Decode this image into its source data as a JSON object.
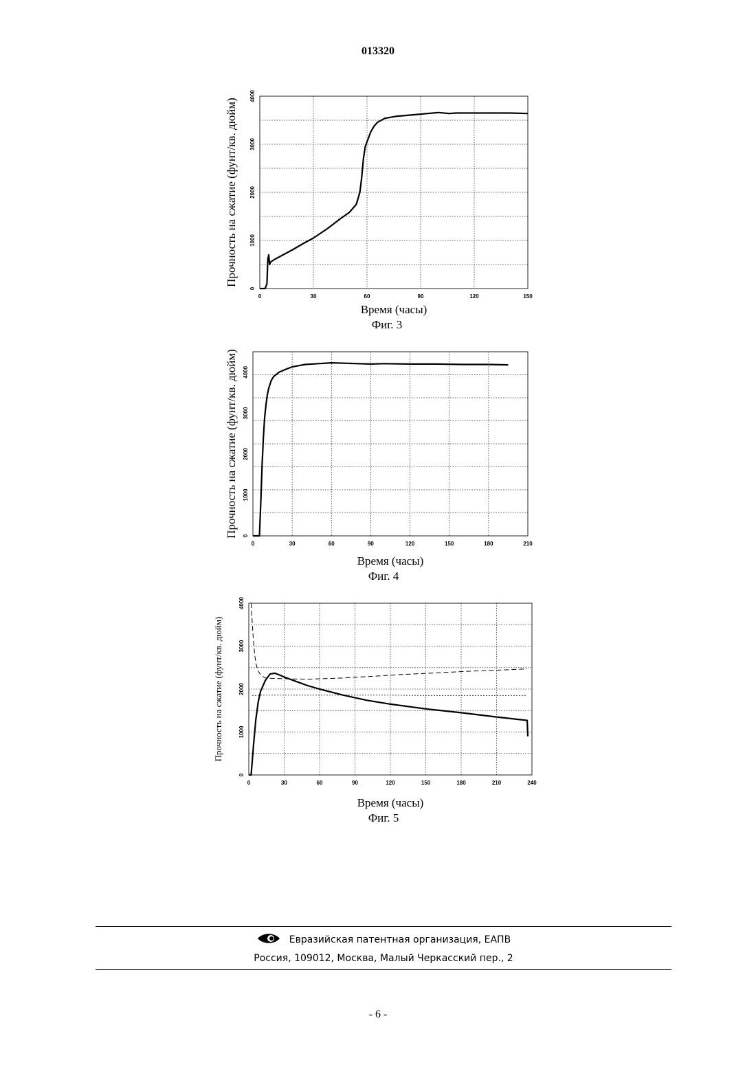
{
  "header": {
    "doc_number": "013320"
  },
  "chart_data": [
    {
      "type": "line",
      "caption": "Фиг. 3",
      "xlabel": "Время (часы)",
      "ylabel": "Прочность на сжатие (фунт/кв. дюйм)",
      "xlim": [
        0,
        150
      ],
      "ylim": [
        0,
        4000
      ],
      "xticks": [
        0,
        30,
        60,
        90,
        120,
        150
      ],
      "yticks": [
        0,
        1000,
        2000,
        3000,
        4000
      ],
      "grid": true,
      "series": [
        {
          "style": "solid",
          "x": [
            0,
            3,
            4,
            4.5,
            5,
            5.5,
            6,
            8,
            12,
            18,
            25,
            30,
            38,
            45,
            50,
            54,
            56,
            57,
            58,
            59,
            60,
            62,
            64,
            66,
            70,
            76,
            82,
            88,
            94,
            100,
            106,
            110,
            120,
            130,
            140,
            150
          ],
          "y": [
            0,
            0,
            100,
            600,
            700,
            500,
            550,
            600,
            680,
            800,
            950,
            1050,
            1250,
            1450,
            1580,
            1750,
            2000,
            2300,
            2700,
            2950,
            3050,
            3250,
            3380,
            3460,
            3540,
            3580,
            3600,
            3620,
            3640,
            3660,
            3640,
            3650,
            3650,
            3650,
            3650,
            3640
          ]
        }
      ]
    },
    {
      "type": "line",
      "caption": "Фиг. 4",
      "xlabel": "Время (часы)",
      "ylabel": "Прочность на сжатие (фунт/кв. дюйм)",
      "xlim": [
        0,
        210
      ],
      "ylim": [
        0,
        4500
      ],
      "xticks": [
        0,
        30,
        60,
        90,
        120,
        150,
        180,
        210
      ],
      "yticks": [
        0,
        1000,
        2000,
        3000,
        4000
      ],
      "grid": true,
      "series": [
        {
          "style": "solid",
          "x": [
            0,
            3,
            5,
            6,
            7,
            8,
            9,
            10,
            11,
            12,
            14,
            16,
            20,
            25,
            30,
            35,
            40,
            50,
            60,
            70,
            80,
            90,
            100,
            120,
            140,
            160,
            180,
            195
          ],
          "y": [
            0,
            0,
            0,
            800,
            1700,
            2400,
            2900,
            3200,
            3450,
            3600,
            3800,
            3900,
            4000,
            4070,
            4130,
            4160,
            4190,
            4210,
            4230,
            4220,
            4210,
            4200,
            4210,
            4200,
            4200,
            4190,
            4190,
            4180
          ]
        }
      ]
    },
    {
      "type": "line",
      "caption": "Фиг. 5",
      "xlabel": "Время (часы)",
      "ylabel": "Прочность на сжатие (фунт/кв. дюйм)",
      "xlim": [
        0,
        240
      ],
      "ylim": [
        0,
        4000
      ],
      "xticks": [
        0,
        30,
        60,
        90,
        120,
        150,
        180,
        210,
        240
      ],
      "yticks": [
        0,
        1000,
        2000,
        3000,
        4000
      ],
      "grid": true,
      "series": [
        {
          "style": "solid",
          "x": [
            0,
            2,
            4,
            6,
            8,
            10,
            14,
            18,
            22,
            26,
            30,
            40,
            50,
            60,
            80,
            100,
            120,
            150,
            180,
            210,
            236,
            236.5
          ],
          "y": [
            0,
            0,
            700,
            1300,
            1700,
            1950,
            2200,
            2350,
            2370,
            2330,
            2280,
            2180,
            2080,
            2000,
            1860,
            1740,
            1650,
            1540,
            1450,
            1350,
            1270,
            900
          ]
        },
        {
          "style": "dash",
          "x": [
            2,
            3,
            4,
            5,
            6,
            8,
            10,
            14,
            20,
            30,
            50,
            80,
            100,
            130,
            160,
            190,
            220,
            236
          ],
          "y": [
            4000,
            3500,
            3100,
            2800,
            2600,
            2420,
            2330,
            2260,
            2250,
            2240,
            2230,
            2260,
            2290,
            2340,
            2380,
            2420,
            2450,
            2470
          ]
        },
        {
          "style": "dot",
          "x": [
            3,
            6,
            10,
            20,
            40,
            60,
            90,
            120,
            150,
            180,
            210,
            236
          ],
          "y": [
            1850,
            1850,
            1860,
            1860,
            1860,
            1860,
            1860,
            1860,
            1850,
            1850,
            1850,
            1850
          ]
        }
      ]
    }
  ],
  "footer": {
    "org": "Евразийская патентная организация, ЕАПВ",
    "address": "Россия, 109012, Москва, Малый Черкасский пер., 2"
  },
  "page": {
    "number": "- 6 -"
  },
  "colors": {
    "ink": "#000000",
    "paper": "#ffffff"
  },
  "icons": {
    "footer_logo": "eapo-eye-logo-icon"
  }
}
